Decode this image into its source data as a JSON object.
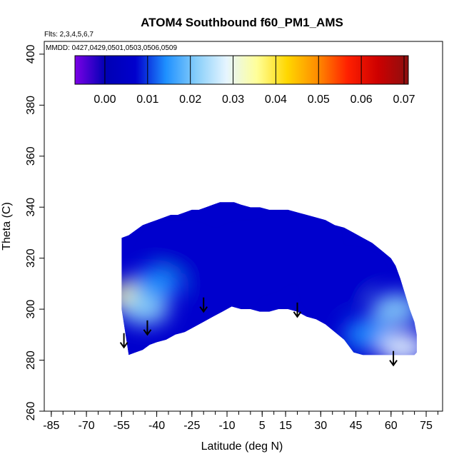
{
  "chart_data": {
    "type": "heatmap",
    "title": "ATOM4 Southbound f60_PM1_AMS",
    "annotations": [
      "Flts: 2,3,4,5,6,7",
      "MMDD: 0427,0429,0501,0503,0506,0509"
    ],
    "xlabel": "Latitude (deg N)",
    "ylabel": "Theta (C)",
    "xlim": [
      -88,
      82
    ],
    "ylim": [
      260,
      405
    ],
    "x_ticks": [
      -85,
      -70,
      -55,
      -40,
      -25,
      -10,
      5,
      15,
      30,
      45,
      60,
      75
    ],
    "x_tick_labels": [
      "-85",
      "-70",
      "-55",
      "-40",
      "-25",
      "-10",
      "5",
      "15",
      "30",
      "45",
      "60",
      "75"
    ],
    "y_ticks": [
      260,
      280,
      300,
      320,
      340,
      360,
      380,
      400
    ],
    "y_tick_labels": [
      "260",
      "280",
      "300",
      "320",
      "340",
      "360",
      "380",
      "400"
    ],
    "colorbar": {
      "min": -0.007,
      "max": 0.071,
      "ticks": [
        0.0,
        0.01,
        0.02,
        0.03,
        0.04,
        0.05,
        0.06,
        0.07
      ],
      "tick_labels": [
        "0.00",
        "0.01",
        "0.02",
        "0.03",
        "0.04",
        "0.05",
        "0.06",
        "0.07"
      ],
      "colors": [
        "#7b00e6",
        "#0000b4",
        "#0000cd",
        "#1e90ff",
        "#87cefa",
        "#e6f5ff",
        "#ffff99",
        "#ffd700",
        "#ff8c00",
        "#ff2000",
        "#cd0000",
        "#8b1010"
      ]
    },
    "data_envelope": {
      "lat": [
        -55,
        -55,
        -52,
        -49,
        -46,
        -43,
        -40,
        -37,
        -34,
        -31,
        -28,
        -25,
        -22,
        -19,
        -16,
        -13,
        -10,
        -7,
        -4,
        0,
        4,
        8,
        12,
        16,
        20,
        24,
        28,
        32,
        36,
        40,
        44,
        48,
        52,
        56,
        60,
        62,
        64,
        66,
        68,
        70,
        71,
        71,
        70,
        68,
        66,
        64,
        62,
        60,
        56,
        52,
        48,
        44,
        40,
        36,
        32,
        28,
        24,
        20,
        16,
        12,
        8,
        4,
        0,
        -4,
        -8,
        -12,
        -16,
        -20,
        -24,
        -28,
        -32,
        -36,
        -40,
        -43,
        -46,
        -49,
        -52,
        -55
      ],
      "theta": [
        320,
        328,
        329,
        331,
        333,
        334,
        335,
        336,
        337,
        337,
        338,
        339,
        339,
        340,
        341,
        342,
        342,
        342,
        341,
        340,
        340,
        339,
        339,
        339,
        338,
        337,
        336,
        335,
        333,
        332,
        330,
        328,
        326,
        323,
        320,
        317,
        312,
        306,
        300,
        295,
        290,
        283,
        282,
        282,
        282,
        282,
        282,
        282,
        282,
        282,
        282,
        283,
        288,
        291,
        294,
        296,
        297,
        299,
        300,
        300,
        299,
        299,
        300,
        300,
        301,
        299,
        297,
        295,
        293,
        291,
        290,
        288,
        287,
        286,
        284,
        283,
        282,
        300
      ]
    },
    "field_samples": [
      {
        "lat": -50,
        "theta": 305,
        "value": 0.035
      },
      {
        "lat": -45,
        "theta": 300,
        "value": 0.018
      },
      {
        "lat": -40,
        "theta": 310,
        "value": 0.014
      },
      {
        "lat": -30,
        "theta": 320,
        "value": 0.006
      },
      {
        "lat": -15,
        "theta": 310,
        "value": 0.01
      },
      {
        "lat": 0,
        "theta": 320,
        "value": 0.005
      },
      {
        "lat": 20,
        "theta": 325,
        "value": 0.004
      },
      {
        "lat": 40,
        "theta": 310,
        "value": 0.007
      },
      {
        "lat": 50,
        "theta": 290,
        "value": 0.012
      },
      {
        "lat": 62,
        "theta": 300,
        "value": 0.02
      },
      {
        "lat": 65,
        "theta": 285,
        "value": 0.025
      }
    ],
    "markers": [
      {
        "label": "arrow",
        "lat": -54,
        "theta": 285
      },
      {
        "label": "arrow",
        "lat": -44,
        "theta": 290
      },
      {
        "label": "arrow",
        "lat": -20,
        "theta": 299
      },
      {
        "label": "arrow",
        "lat": 20,
        "theta": 297
      },
      {
        "label": "arrow",
        "lat": 61,
        "theta": 278
      }
    ]
  }
}
